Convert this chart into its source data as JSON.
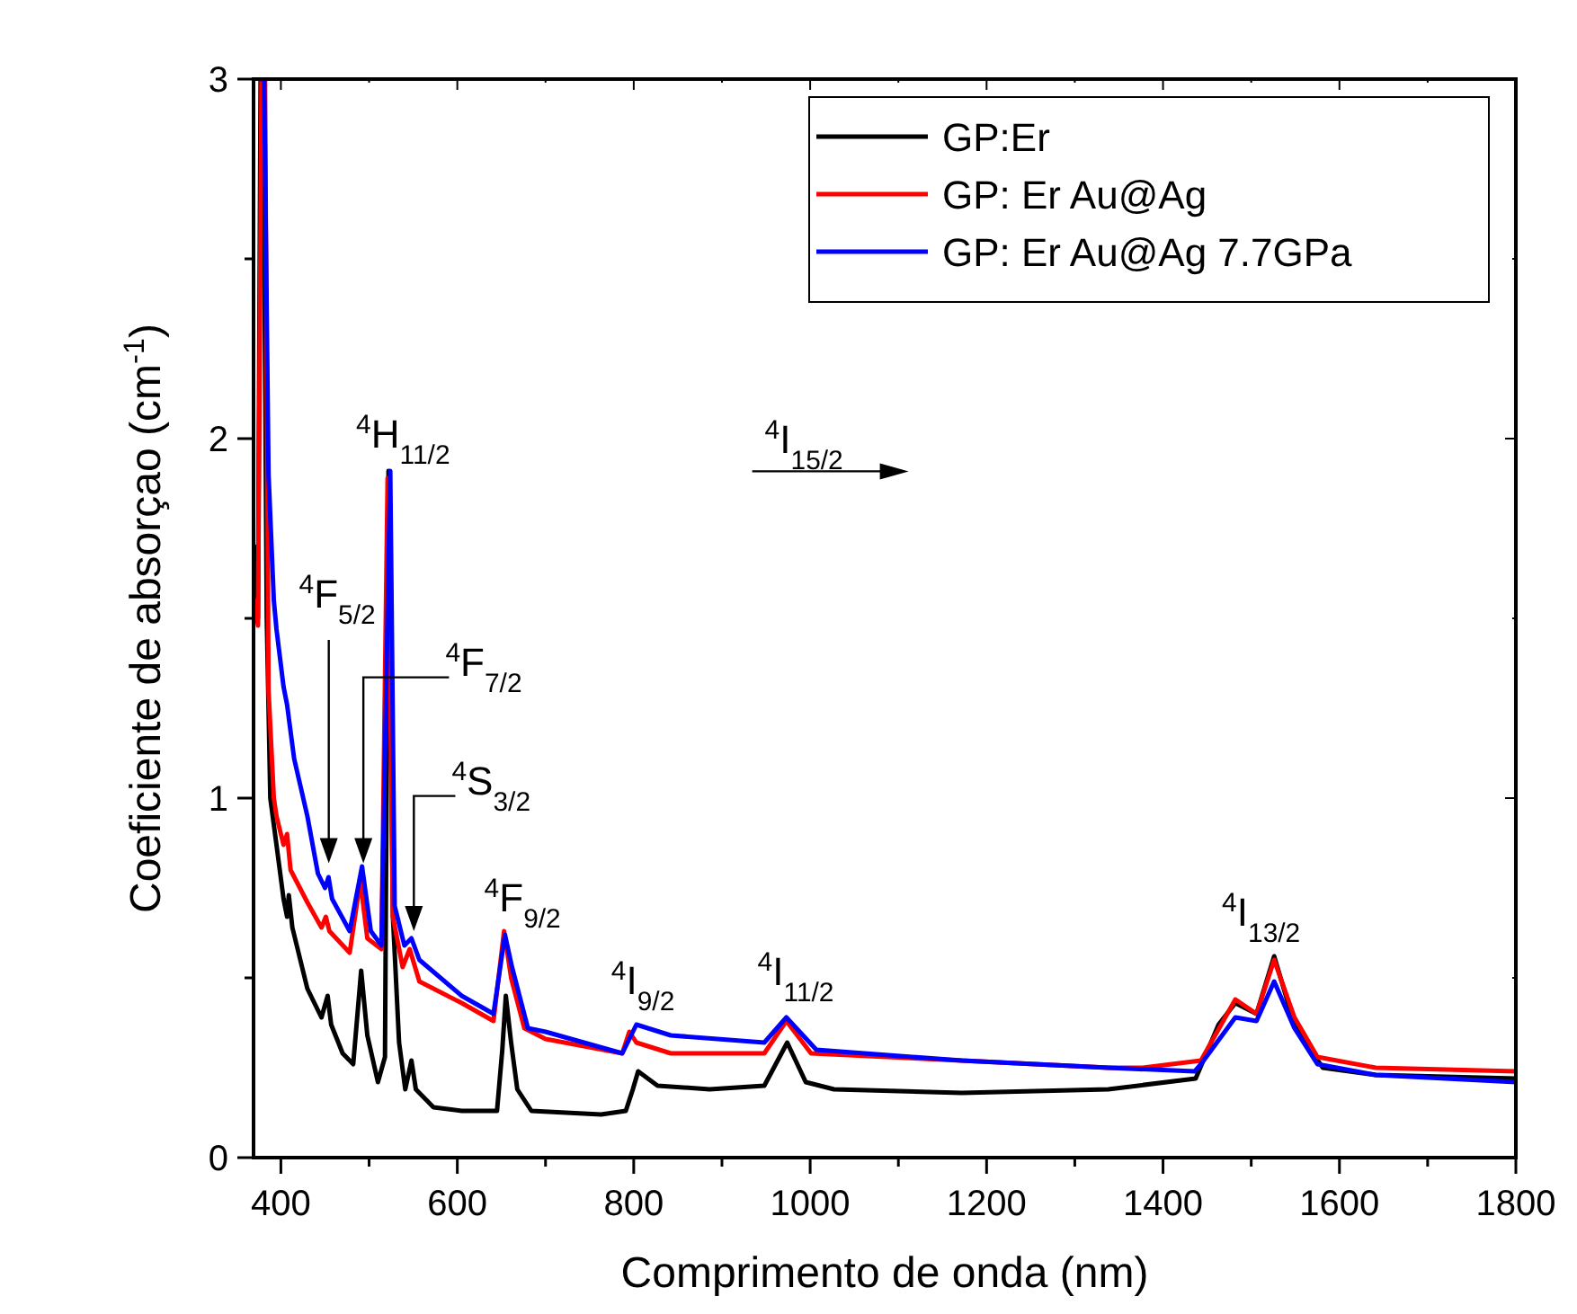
{
  "chart_data": {
    "type": "line",
    "xlabel": "Comprimento de onda (nm)",
    "ylabel": "Coeficiente de absorçao (cm$^{-1}$)",
    "xlim": [
      369,
      1800
    ],
    "xticks": [
      400,
      {
        "value": 500,
        "label": null
      },
      600,
      {
        "value": 700,
        "label": null
      },
      800,
      {
        "value": 900,
        "label": null
      },
      1000,
      {
        "value": 1100,
        "label": null
      },
      1200,
      {
        "value": 1300,
        "label": null
      },
      1400,
      {
        "value": 1500,
        "label": null
      },
      1600,
      {
        "value": 1700,
        "label": null
      },
      1800
    ],
    "ylim": [
      0,
      3
    ],
    "yticks": [
      0,
      {
        "value": 0.5,
        "label": null
      },
      1,
      {
        "value": 1.5,
        "label": null
      },
      2,
      {
        "value": 2.5,
        "label": null
      },
      3
    ],
    "legend": "top right",
    "series": [
      {
        "name": "GP:Er",
        "color": "#000000",
        "x": [
          370,
          374,
          377,
          380,
          384,
          388,
          395,
          403,
          407,
          409,
          413,
          430,
          446,
          453,
          457,
          470,
          482,
          491,
          498,
          510,
          518,
          522,
          527,
          534,
          541,
          548,
          553,
          573,
          605,
          645,
          651,
          655,
          661,
          668,
          684,
          763,
          791,
          799,
          805,
          827,
          886,
          948,
          974,
          995,
          1027,
          1172,
          1338,
          1437,
          1463,
          1482,
          1506,
          1526,
          1549,
          1581,
          1641,
          1800
        ],
        "values": [
          1.7,
          1.5,
          3.0,
          3.0,
          1.5,
          1.0,
          0.87,
          0.72,
          0.67,
          0.73,
          0.64,
          0.47,
          0.39,
          0.45,
          0.37,
          0.29,
          0.26,
          0.52,
          0.34,
          0.21,
          0.28,
          1.91,
          0.67,
          0.32,
          0.19,
          0.27,
          0.19,
          0.14,
          0.13,
          0.13,
          0.3,
          0.45,
          0.32,
          0.19,
          0.13,
          0.12,
          0.13,
          0.19,
          0.24,
          0.2,
          0.19,
          0.2,
          0.32,
          0.21,
          0.19,
          0.18,
          0.19,
          0.22,
          0.37,
          0.43,
          0.4,
          0.56,
          0.37,
          0.25,
          0.23,
          0.22
        ]
      },
      {
        "name": "GP: Er Au@Ag",
        "color": "#ff0000",
        "x": [
          370,
          374,
          378,
          382,
          386,
          392,
          395,
          403,
          407,
          411,
          430,
          446,
          451,
          455,
          478,
          490,
          498,
          514,
          521,
          527,
          538,
          546,
          557,
          605,
          641,
          653,
          661,
          676,
          700,
          787,
          795,
          803,
          842,
          948,
          973,
          1001,
          1172,
          1338,
          1377,
          1443,
          1482,
          1506,
          1526,
          1549,
          1575,
          1641,
          1800
        ],
        "values": [
          1.55,
          1.48,
          3.0,
          3.0,
          1.3,
          1.0,
          0.95,
          0.87,
          0.9,
          0.8,
          0.71,
          0.64,
          0.67,
          0.63,
          0.57,
          0.77,
          0.61,
          0.58,
          1.89,
          0.67,
          0.53,
          0.58,
          0.49,
          0.43,
          0.38,
          0.63,
          0.5,
          0.36,
          0.33,
          0.29,
          0.35,
          0.32,
          0.29,
          0.29,
          0.38,
          0.29,
          0.27,
          0.25,
          0.25,
          0.27,
          0.44,
          0.4,
          0.55,
          0.39,
          0.28,
          0.25,
          0.24
        ]
      },
      {
        "name": "GP: Er Au@Ag 7.7GPa",
        "color": "#0000ff",
        "x": [
          377,
          381,
          386,
          392,
          395,
          403,
          407,
          415,
          430,
          442,
          450,
          454,
          458,
          478,
          492,
          502,
          514,
          524,
          529,
          540,
          548,
          557,
          605,
          641,
          654,
          662,
          680,
          700,
          787,
          803,
          842,
          948,
          973,
          1007,
          1172,
          1338,
          1436,
          1443,
          1482,
          1506,
          1526,
          1549,
          1575,
          1641,
          1800
        ],
        "values": [
          3.0,
          3.0,
          1.9,
          1.55,
          1.47,
          1.31,
          1.26,
          1.11,
          0.95,
          0.79,
          0.75,
          0.78,
          0.72,
          0.63,
          0.81,
          0.63,
          0.59,
          1.91,
          0.7,
          0.59,
          0.61,
          0.55,
          0.45,
          0.4,
          0.62,
          0.53,
          0.36,
          0.35,
          0.29,
          0.37,
          0.34,
          0.32,
          0.39,
          0.3,
          0.27,
          0.25,
          0.24,
          0.26,
          0.39,
          0.38,
          0.49,
          0.36,
          0.26,
          0.23,
          0.21
        ]
      }
    ],
    "annotations": [
      "$^{4}$F$_{5/2}$",
      "$^{4}$F$_{7/2}$",
      "$^{4}$S$_{3/2}$",
      {
        "text": "$^{4}$H$_{11/2}$",
        "x": 522,
        "y": 1.91
      },
      {
        "text": "$^{4}$F$_{9/2}$",
        "x": 655,
        "y": 0.63
      },
      {
        "text": "$^{4}$I$_{9/2}$",
        "x": 803,
        "y": 0.37
      },
      {
        "text": "$^{4}$I$_{11/2}$",
        "x": 975,
        "y": 0.39
      },
      {
        "text": "$^{4}$I$_{13/2}$",
        "x": 1530,
        "y": 0.56
      },
      "$^{4}$I$_{15/2}$"
    ]
  }
}
